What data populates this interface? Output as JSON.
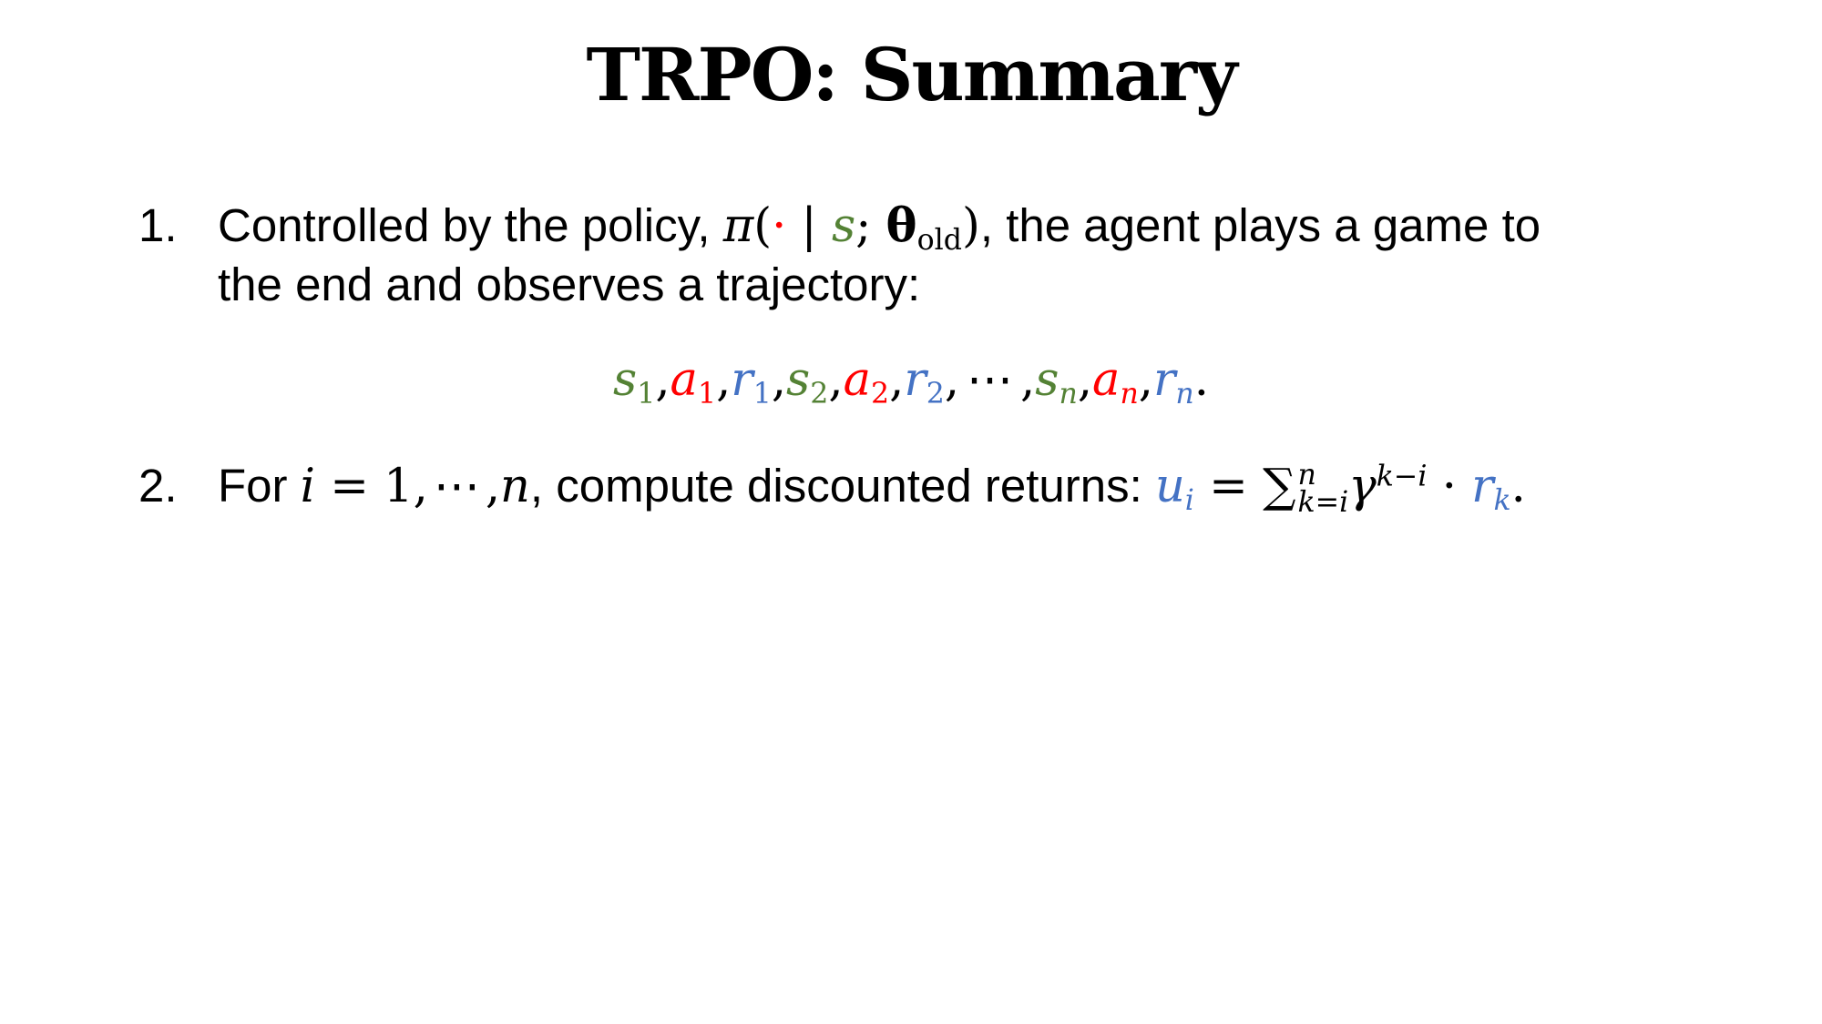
{
  "colors": {
    "state": "#548235",
    "action": "#ff0000",
    "reward": "#4472c4",
    "text": "#000000"
  },
  "slide": {
    "title": "TRPO: Summary"
  },
  "item1": {
    "number": "1.",
    "text_before": "Controlled by the policy, ",
    "pi": "π",
    "open_paren": "(",
    "dot": "·",
    "bar": " | ",
    "s": "s",
    "semicolon": "; ",
    "theta": "θ",
    "theta_sub": "old",
    "close_paren": ")",
    "text_after": ", the agent plays a game to",
    "line2": "the end and observes a trajectory:"
  },
  "trajectory": {
    "s": "s",
    "a": "a",
    "r": "r",
    "sub1": "1",
    "sub2": "2",
    "subn": "n",
    "comma": ",",
    "ellipsis": "⋯",
    "period": "."
  },
  "item2": {
    "number": "2.",
    "for": "For ",
    "i": "i",
    "equals_one": " = 1,",
    "ellipsis": "⋯",
    "comma": ",",
    "n": "n",
    "text": ", compute discounted returns: ",
    "u": "u",
    "u_sub": "i",
    "equals": " = ",
    "sigma": "∑",
    "sum_top": "n",
    "sum_bottom": "k=i",
    "gamma": "γ",
    "gamma_sup": "k−i",
    "cdot": " · ",
    "r": "r",
    "r_sub": "k",
    "period": "."
  }
}
